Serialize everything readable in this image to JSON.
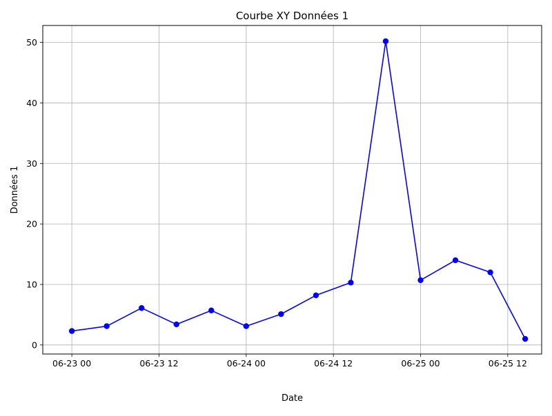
{
  "chart_data": {
    "type": "line",
    "title": "Courbe XY Données 1",
    "xlabel": "Date",
    "ylabel": "Données 1",
    "x_tick_labels": [
      "06-23 00",
      "06-23 12",
      "06-24 00",
      "06-24 12",
      "06-25 00",
      "06-25 12"
    ],
    "y_tick_labels": [
      "0",
      "10",
      "20",
      "30",
      "40",
      "50"
    ],
    "x_ticks": [
      "2024-06-23T00:00",
      "2024-06-23T12:00",
      "2024-06-24T00:00",
      "2024-06-24T12:00",
      "2024-06-25T00:00",
      "2024-06-25T12:00"
    ],
    "y_ticks": [
      0,
      10,
      20,
      30,
      40,
      50
    ],
    "xlim": [
      "2024-06-22T20:00",
      "2024-06-25T16:40"
    ],
    "ylim": [
      -1.5,
      52.8
    ],
    "grid": true,
    "legend": false,
    "series": [
      {
        "color": "#0000ff",
        "marker": "circle",
        "points": [
          {
            "x": "2024-06-23T00:00",
            "y": 2.3
          },
          {
            "x": "2024-06-23T04:48",
            "y": 3.1
          },
          {
            "x": "2024-06-23T09:36",
            "y": 6.1
          },
          {
            "x": "2024-06-23T14:24",
            "y": 3.4
          },
          {
            "x": "2024-06-23T19:12",
            "y": 5.7
          },
          {
            "x": "2024-06-24T00:00",
            "y": 3.1
          },
          {
            "x": "2024-06-24T04:48",
            "y": 5.1
          },
          {
            "x": "2024-06-24T09:36",
            "y": 8.2
          },
          {
            "x": "2024-06-24T14:24",
            "y": 10.3
          },
          {
            "x": "2024-06-24T19:12",
            "y": 50.2
          },
          {
            "x": "2024-06-25T00:00",
            "y": 10.7
          },
          {
            "x": "2024-06-25T04:48",
            "y": 14.0
          },
          {
            "x": "2024-06-25T09:36",
            "y": 12.0
          },
          {
            "x": "2024-06-25T14:24",
            "y": 1.0
          }
        ]
      }
    ]
  }
}
